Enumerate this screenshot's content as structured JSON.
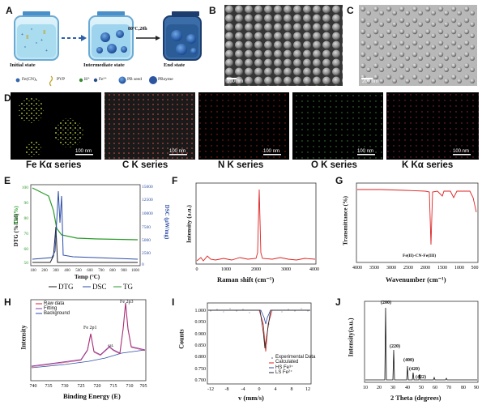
{
  "panels": {
    "A": {
      "label": "A",
      "condition": "80°C,20h",
      "states": [
        "Initial state",
        "Intermediate state",
        "End state"
      ],
      "legend": [
        "Fe(CN)₆",
        "PVP",
        "H⁺",
        "Fe³⁺",
        "PB seed",
        "PBzyme"
      ]
    },
    "B": {
      "label": "B",
      "scale": "100 nm"
    },
    "C": {
      "label": "C",
      "scale": "200 nm"
    },
    "D": {
      "label": "D",
      "scale": "100 nm",
      "captions": [
        "Fe Kα series",
        "C K series",
        "N K series",
        "O K series",
        "K Kα series"
      ],
      "colors": [
        "#d7e84a",
        "#e63a2e",
        "#d5322a",
        "#4fb84a",
        "#c8306a"
      ]
    },
    "E": {
      "label": "E",
      "left_axis_title": "DTG (%/Cel)",
      "left_axis_title2": "TG (%)",
      "right_axis_title": "DSC (μW/mg)",
      "xlabel": "Temp (°C)",
      "tg_ticks": [
        "100",
        "90",
        "80",
        "70",
        "60",
        "50"
      ],
      "dsc_ticks": [
        "15000",
        "12500",
        "10000",
        "7500",
        "5000",
        "2500",
        "0"
      ],
      "xticks": [
        "100",
        "200",
        "300",
        "400",
        "500",
        "600",
        "700",
        "800",
        "900",
        "1000"
      ],
      "legend": [
        "DTG",
        "DSC",
        "TG"
      ]
    },
    "F": {
      "label": "F",
      "ylabel": "Intensity (a.u.)",
      "xlabel": "Raman shift (cm⁻¹)",
      "xticks": [
        "0",
        "1000",
        "2000",
        "3000",
        "4000"
      ]
    },
    "G": {
      "label": "G",
      "ylabel": "Transmittance (%)",
      "xlabel": "Wavenumber (cm⁻¹)",
      "annotation": "Fe(II)-CN-Fe(III)",
      "xticks": [
        "4000",
        "3500",
        "3000",
        "2500",
        "2000",
        "1500",
        "1000",
        "500"
      ]
    },
    "H": {
      "label": "H",
      "ylabel": "Intensity",
      "xlabel": "Binding Energy (E)",
      "legend": [
        "Raw data",
        "Fitting",
        "Background"
      ],
      "annotations": [
        "Fe 2p1",
        "sat.",
        "Fe 2p3"
      ],
      "xticks": [
        "740",
        "735",
        "730",
        "725",
        "720",
        "715",
        "710",
        "705"
      ]
    },
    "I": {
      "label": "I",
      "ylabel": "Counts",
      "xlabel": "v (mm/s)",
      "yticks": [
        "1.000",
        "0.950",
        "0.900",
        "0.850",
        "0.800",
        "0.750",
        "0.700"
      ],
      "xticks": [
        "-12",
        "-8",
        "-4",
        "0",
        "4",
        "8",
        "12"
      ],
      "legend": [
        "Experimental Data",
        "Calculated",
        "HS Fe³⁺",
        "LS Fe²⁺"
      ]
    },
    "J": {
      "label": "J",
      "ylabel": "Intensity(a.u.)",
      "xlabel": "2 Theta (degrees)",
      "peaks": [
        "(200)",
        "(220)",
        "(400)",
        "(420)",
        "(422)"
      ],
      "xticks": [
        "10",
        "20",
        "30",
        "40",
        "50",
        "60",
        "70",
        "80",
        "90"
      ]
    }
  }
}
